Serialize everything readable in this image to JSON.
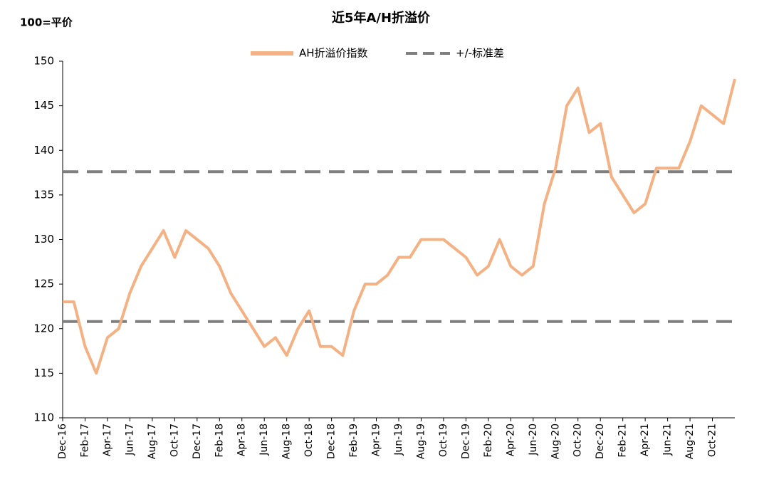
{
  "chart_data": {
    "type": "line",
    "title": "近5年A/H折溢价",
    "y_label": "100=平价",
    "categories": [
      "Dec-16",
      null,
      "Feb-17",
      null,
      "Apr-17",
      null,
      "Jun-17",
      null,
      "Aug-17",
      null,
      "Oct-17",
      null,
      "Dec-17",
      null,
      "Feb-18",
      null,
      "Apr-18",
      null,
      "Jun-18",
      null,
      "Aug-18",
      null,
      "Oct-18",
      null,
      "Dec-18",
      null,
      "Feb-19",
      null,
      "Apr-19",
      null,
      "Jun-19",
      null,
      "Aug-19",
      null,
      "Oct-19",
      null,
      "Dec-19",
      null,
      "Feb-20",
      null,
      "Apr-20",
      null,
      "Jun-20",
      null,
      "Aug-20",
      null,
      "Oct-20",
      null,
      "Dec-20",
      null,
      "Feb-21",
      null,
      "Apr-21",
      null,
      "Jun-21",
      null,
      "Aug-21",
      null,
      "Oct-21",
      null,
      null
    ],
    "series": [
      {
        "name": "AH折溢价指数",
        "color": "#f4b183",
        "values": [
          123,
          123,
          118,
          115,
          119,
          120,
          124,
          127,
          129,
          131,
          128,
          131,
          130,
          129,
          127,
          124,
          122,
          120,
          118,
          119,
          117,
          120,
          122,
          118,
          118,
          117,
          122,
          125,
          125,
          126,
          128,
          128,
          130,
          130,
          130,
          129,
          128,
          126,
          127,
          130,
          127,
          126,
          127,
          134,
          138,
          145,
          147,
          142,
          143,
          137,
          135,
          133,
          134,
          138,
          138,
          138,
          141,
          145,
          144,
          143,
          148
        ]
      }
    ],
    "reference_lines": {
      "name": "+/-标准差",
      "color": "#7f7f7f",
      "values": [
        120.8,
        137.6
      ]
    },
    "ylim": [
      110,
      150
    ],
    "yticks": [
      110,
      115,
      120,
      125,
      130,
      135,
      140,
      145,
      150
    ],
    "grid": false,
    "legend": "top"
  }
}
